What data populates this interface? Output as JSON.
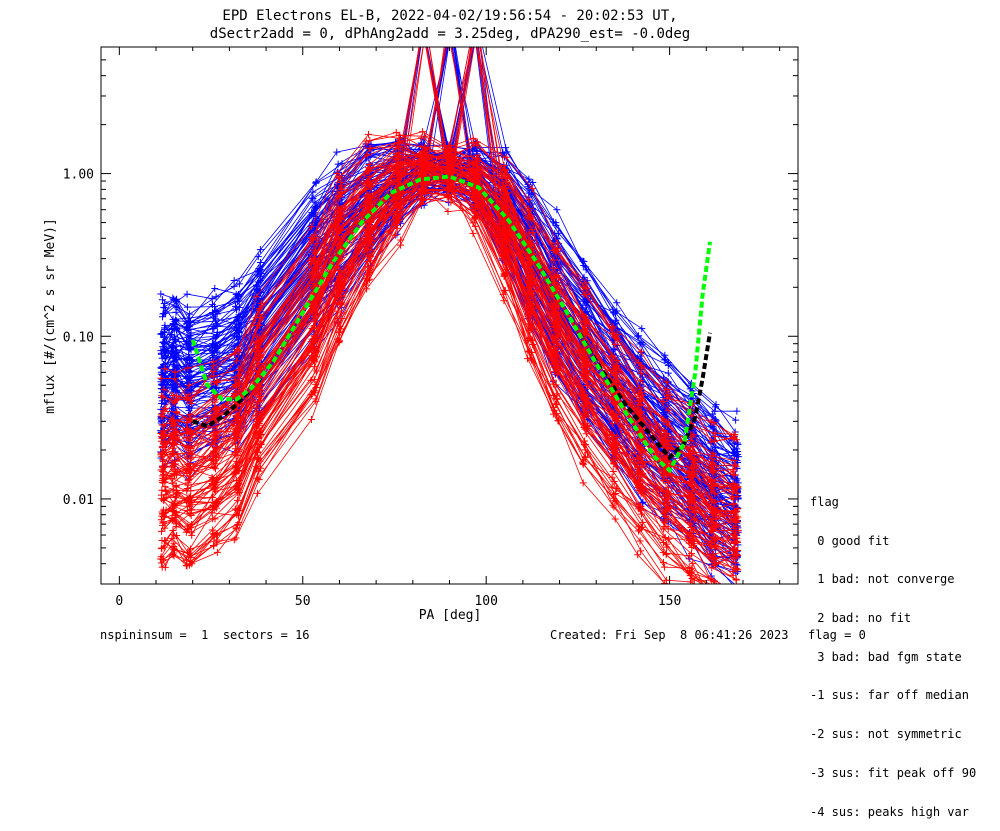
{
  "title_line1": "EPD Electrons EL-B, 2022-04-02/19:56:54 - 20:02:53 UT,",
  "title_line2": "dSectr2add = 0, dPhAng2add = 3.25deg, dPA290_est=  -0.0deg",
  "footer": {
    "left": "nspininsum =  1  sectors = 16",
    "created": "Created: Fri Sep  8 06:41:26 2023",
    "flag": "flag = 0"
  },
  "legend": {
    "header": "flag",
    "items": [
      " 0 good fit",
      " 1 bad: not converge",
      " 2 bad: no fit",
      " 3 bad: bad fgm state",
      "-1 sus: far off median",
      "-2 sus: not symmetric",
      "-3 sus: fit peak off 90",
      "-4 sus: peaks high var"
    ]
  },
  "colors": {
    "series_a": "#ff0000",
    "series_b": "#0000ff",
    "fit_green": "#00ff00",
    "fit_black": "#000000"
  },
  "chart_data": {
    "type": "line",
    "xlabel": "PA [deg]",
    "ylabel": "mflux [#/(cm^2 s sr MeV)]",
    "xlim": [
      -5,
      185
    ],
    "ylim": [
      0.003,
      6.0
    ],
    "yscale": "log",
    "xticks": [
      0,
      50,
      100,
      150
    ],
    "yticks": [
      0.01,
      0.1,
      1.0
    ],
    "ytick_labels": [
      "0.01",
      "0.10",
      "1.00"
    ],
    "pa_bins": [
      12,
      15,
      19,
      26,
      32,
      38,
      53,
      60,
      68,
      76,
      83,
      90,
      97,
      105,
      112,
      119,
      127,
      135,
      142,
      149,
      156,
      162,
      168
    ],
    "series": [
      {
        "color": "#0000ff",
        "profile": [
          0.045,
          0.05,
          0.045,
          0.05,
          0.06,
          0.09,
          0.25,
          0.38,
          0.6,
          0.85,
          1.0,
          0.98,
          0.9,
          0.55,
          0.3,
          0.15,
          0.08,
          0.045,
          0.03,
          0.02,
          0.014,
          0.01,
          0.008
        ],
        "curves": 110,
        "spread_decades": 0.55
      },
      {
        "color": "#ff0000",
        "profile": [
          0.012,
          0.013,
          0.012,
          0.015,
          0.02,
          0.04,
          0.12,
          0.28,
          0.5,
          0.8,
          0.98,
          0.98,
          0.85,
          0.45,
          0.2,
          0.1,
          0.05,
          0.03,
          0.018,
          0.012,
          0.009,
          0.007,
          0.006
        ],
        "curves": 90,
        "spread_decades": 0.6
      }
    ],
    "fits": [
      {
        "color": "#00ff00",
        "x": [
          20,
          24,
          28,
          32,
          36,
          42,
          50,
          58,
          66,
          74,
          82,
          90,
          98,
          106,
          114,
          122,
          130,
          138,
          146,
          150,
          154,
          157,
          159,
          161
        ],
        "y": [
          0.095,
          0.05,
          0.041,
          0.041,
          0.048,
          0.07,
          0.14,
          0.28,
          0.5,
          0.76,
          0.92,
          0.96,
          0.82,
          0.52,
          0.28,
          0.14,
          0.068,
          0.034,
          0.018,
          0.015,
          0.022,
          0.06,
          0.18,
          0.38
        ]
      },
      {
        "color": "#000000",
        "x": [
          20,
          24,
          28,
          32,
          36,
          42,
          50,
          58,
          66,
          74,
          82,
          90,
          98,
          106,
          114,
          122,
          130,
          138,
          146,
          150,
          154,
          157,
          159,
          161
        ],
        "y": [
          0.03,
          0.028,
          0.032,
          0.038,
          0.048,
          0.07,
          0.14,
          0.28,
          0.5,
          0.76,
          0.92,
          0.96,
          0.82,
          0.52,
          0.28,
          0.14,
          0.07,
          0.038,
          0.023,
          0.018,
          0.022,
          0.032,
          0.055,
          0.105
        ]
      }
    ]
  }
}
